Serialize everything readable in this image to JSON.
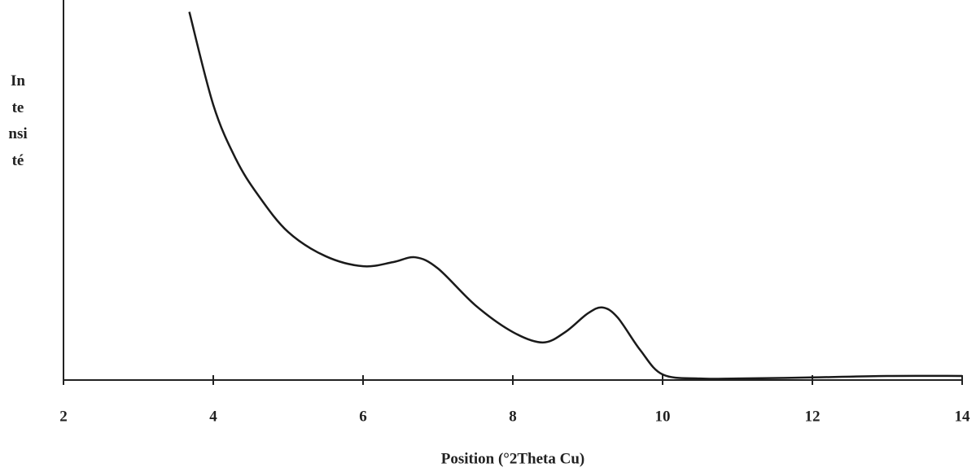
{
  "chart_data": {
    "type": "line",
    "x_label": "Position (°2Theta Cu)",
    "y_label": "Intensité",
    "x": [
      3.68,
      4.0,
      4.3,
      4.6,
      5.0,
      5.5,
      6.0,
      6.4,
      6.7,
      7.0,
      7.5,
      8.0,
      8.4,
      8.7,
      9.0,
      9.2,
      9.4,
      9.7,
      10.0,
      10.5,
      11.0,
      12.0,
      13.0,
      14.0
    ],
    "values": [
      99,
      74,
      59.5,
      49.7,
      39.8,
      33.3,
      30.6,
      31.7,
      33,
      30,
      20.1,
      12.9,
      10.1,
      12.9,
      17.9,
      19.5,
      16.8,
      8.1,
      1.5,
      0.4,
      0.4,
      0.7,
      1.1,
      1.1
    ],
    "color": "#1a1a1a",
    "xlim": [
      2,
      14
    ],
    "xticks": [
      2,
      4,
      6,
      8,
      10,
      12,
      14
    ],
    "ylim": [
      0,
      100
    ]
  }
}
